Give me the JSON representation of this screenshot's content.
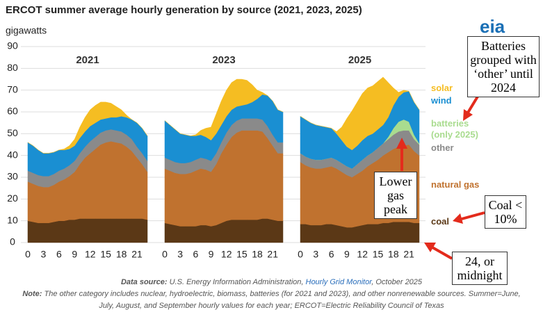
{
  "header": {
    "title": "ERCOT summer average hourly generation by source (2021, 2023, 2025)",
    "subtitle": "gigawatts",
    "logo": "eia"
  },
  "chart_data": [
    {
      "type": "area",
      "title": "2021",
      "x": [
        0,
        1,
        2,
        3,
        4,
        5,
        6,
        7,
        8,
        9,
        10,
        11,
        12,
        13,
        14,
        15,
        16,
        17,
        18,
        19,
        20,
        21,
        22,
        23
      ],
      "xlim": [
        0,
        23
      ],
      "xticks": [
        0,
        3,
        6,
        9,
        12,
        15,
        18,
        21
      ],
      "ylim": [
        0,
        90
      ],
      "yticks": [
        0,
        10,
        20,
        30,
        40,
        50,
        60,
        70,
        80,
        90
      ],
      "grid": true,
      "series": [
        {
          "name": "coal",
          "color": "#5b3816",
          "values": [
            10,
            9.5,
            9,
            9,
            9,
            9.5,
            10,
            10,
            10.5,
            10.5,
            11,
            11,
            11,
            11,
            11,
            11,
            11,
            11,
            11,
            11,
            11,
            11,
            11,
            10.5
          ]
        },
        {
          "name": "natural gas",
          "color": "#c0722f",
          "values": [
            18,
            17.5,
            17,
            16.5,
            16.5,
            17,
            18,
            19,
            20,
            22,
            25,
            28,
            30,
            32,
            34,
            35,
            35.5,
            35,
            34.5,
            33,
            31,
            28,
            25,
            22
          ]
        },
        {
          "name": "other",
          "color": "#8a8a8a",
          "values": [
            5,
            5,
            5,
            5,
            5,
            5,
            5,
            5,
            5,
            5,
            5,
            5,
            5.5,
            5.5,
            5.5,
            5.5,
            5.5,
            5.5,
            5.5,
            5.5,
            5.5,
            5,
            5,
            5
          ]
        },
        {
          "name": "wind",
          "color": "#1a8fd2",
          "values": [
            13,
            12.5,
            11.5,
            10.5,
            10.5,
            10,
            9.5,
            8.5,
            7.5,
            7,
            7,
            7,
            7,
            6.5,
            6,
            5.5,
            5.5,
            6,
            7,
            8,
            9,
            11,
            11.5,
            11.5
          ]
        },
        {
          "name": "solar",
          "color": "#f5bd22",
          "values": [
            0,
            0,
            0,
            0,
            0,
            0,
            0,
            0.5,
            1.5,
            3,
            5,
            6.5,
            7.5,
            8,
            8,
            7.5,
            6.5,
            5,
            3,
            1,
            0,
            0,
            0,
            0
          ]
        }
      ]
    },
    {
      "type": "area",
      "title": "2023",
      "x": [
        0,
        1,
        2,
        3,
        4,
        5,
        6,
        7,
        8,
        9,
        10,
        11,
        12,
        13,
        14,
        15,
        16,
        17,
        18,
        19,
        20,
        21,
        22,
        23
      ],
      "xlim": [
        0,
        23
      ],
      "xticks": [
        0,
        3,
        6,
        9,
        12,
        15,
        18,
        21
      ],
      "series": [
        {
          "name": "coal",
          "color": "#5b3816",
          "values": [
            9,
            8.5,
            8,
            7.5,
            7.5,
            7.5,
            7.5,
            8,
            8,
            7.5,
            8,
            9,
            10,
            10.5,
            10.5,
            10.5,
            10.5,
            10.5,
            10.5,
            11,
            11,
            10.5,
            10,
            10
          ]
        },
        {
          "name": "natural gas",
          "color": "#c0722f",
          "values": [
            25,
            24.5,
            24,
            24,
            24,
            24.5,
            25.5,
            26,
            25.5,
            25,
            28,
            32,
            35,
            38,
            40,
            41,
            41,
            41,
            41,
            40,
            37,
            34,
            31,
            31
          ]
        },
        {
          "name": "other",
          "color": "#8a8a8a",
          "values": [
            5,
            5,
            5,
            5,
            5,
            5,
            5,
            5,
            5,
            5,
            5,
            5,
            5.5,
            5.5,
            5.5,
            5.5,
            5.5,
            5.5,
            5.5,
            5.5,
            5.5,
            5,
            5,
            5
          ]
        },
        {
          "name": "wind",
          "color": "#1a8fd2",
          "values": [
            17,
            16,
            15,
            13.5,
            13,
            12,
            11,
            10.5,
            10,
            9.5,
            9,
            8,
            7.5,
            7,
            6.5,
            6,
            6.5,
            7.5,
            9,
            11.5,
            14,
            15.5,
            15,
            14
          ]
        },
        {
          "name": "solar",
          "color": "#f5bd22",
          "values": [
            0,
            0,
            0,
            0,
            0,
            0,
            0.5,
            2,
            4,
            6,
            9,
            11,
            12,
            12.5,
            12.5,
            12,
            11,
            8,
            4,
            1,
            0,
            0,
            0,
            0
          ]
        }
      ]
    },
    {
      "type": "area",
      "title": "2025",
      "x": [
        0,
        1,
        2,
        3,
        4,
        5,
        6,
        7,
        8,
        9,
        10,
        11,
        12,
        13,
        14,
        15,
        16,
        17,
        18,
        19,
        20,
        21,
        22,
        23
      ],
      "xlim": [
        0,
        23
      ],
      "xticks": [
        0,
        3,
        6,
        9,
        12,
        15,
        18,
        21
      ],
      "series": [
        {
          "name": "coal",
          "color": "#5b3816",
          "values": [
            8.5,
            8.5,
            8,
            8,
            8,
            8.5,
            8.5,
            8,
            7.5,
            7,
            7,
            7.5,
            8,
            8.5,
            8.5,
            8.5,
            9,
            9,
            9.5,
            9.5,
            9.5,
            9.5,
            9,
            9
          ]
        },
        {
          "name": "natural gas",
          "color": "#c0722f",
          "values": [
            28.5,
            27,
            26.5,
            26,
            26,
            26,
            26.5,
            26,
            25,
            24,
            23,
            24,
            25,
            26.5,
            28,
            29.5,
            31,
            32.5,
            33.5,
            34.5,
            35,
            35.5,
            33,
            31
          ]
        },
        {
          "name": "other",
          "color": "#8a8a8a",
          "values": [
            4,
            4,
            4,
            4,
            4,
            4,
            4,
            4,
            4,
            4,
            4,
            4.5,
            5,
            5,
            5,
            5.5,
            5.5,
            6,
            6.5,
            7,
            7,
            6.5,
            5.5,
            5
          ]
        },
        {
          "name": "batteries (only 2025)",
          "color": "#a9dc8f",
          "values": [
            0,
            0,
            0,
            0,
            0,
            0,
            0,
            0,
            0,
            0,
            0,
            0,
            0,
            0,
            0,
            0,
            0,
            1,
            3,
            4.5,
            5,
            4,
            2,
            0.5
          ]
        },
        {
          "name": "wind",
          "color": "#1a8fd2",
          "values": [
            17,
            17,
            16.5,
            16,
            15.5,
            14.5,
            13.5,
            12,
            10.5,
            9,
            8.5,
            8.5,
            9,
            9,
            8.5,
            8.5,
            8.5,
            9,
            10.5,
            11.5,
            12.5,
            14,
            15,
            15.5
          ]
        },
        {
          "name": "solar",
          "color": "#f5bd22",
          "values": [
            0,
            0,
            0,
            0,
            0,
            0,
            0,
            1,
            6,
            13,
            18,
            20,
            21.5,
            22,
            22,
            22,
            22,
            16,
            8,
            2,
            1,
            0,
            0,
            0
          ]
        }
      ]
    }
  ],
  "annotations": [
    "Batteries grouped with ‘other’ until 2024",
    "Lower gas peak",
    "Coal < 10%",
    "24, or midnight"
  ],
  "footer": {
    "source_label": "Data source:",
    "source_text": "U.S. Energy Information Administration,",
    "source_link": "Hourly Grid Monitor",
    "source_date": ", October 2025",
    "note_label": "Note:",
    "note_text": "The other category includes nuclear, hydroelectric, biomass, batteries (for 2021 and 2023), and other nonrenewable sources. Summer=June, July, August, and September hourly values for each year; ERCOT=Electric Reliability Council of Texas"
  }
}
